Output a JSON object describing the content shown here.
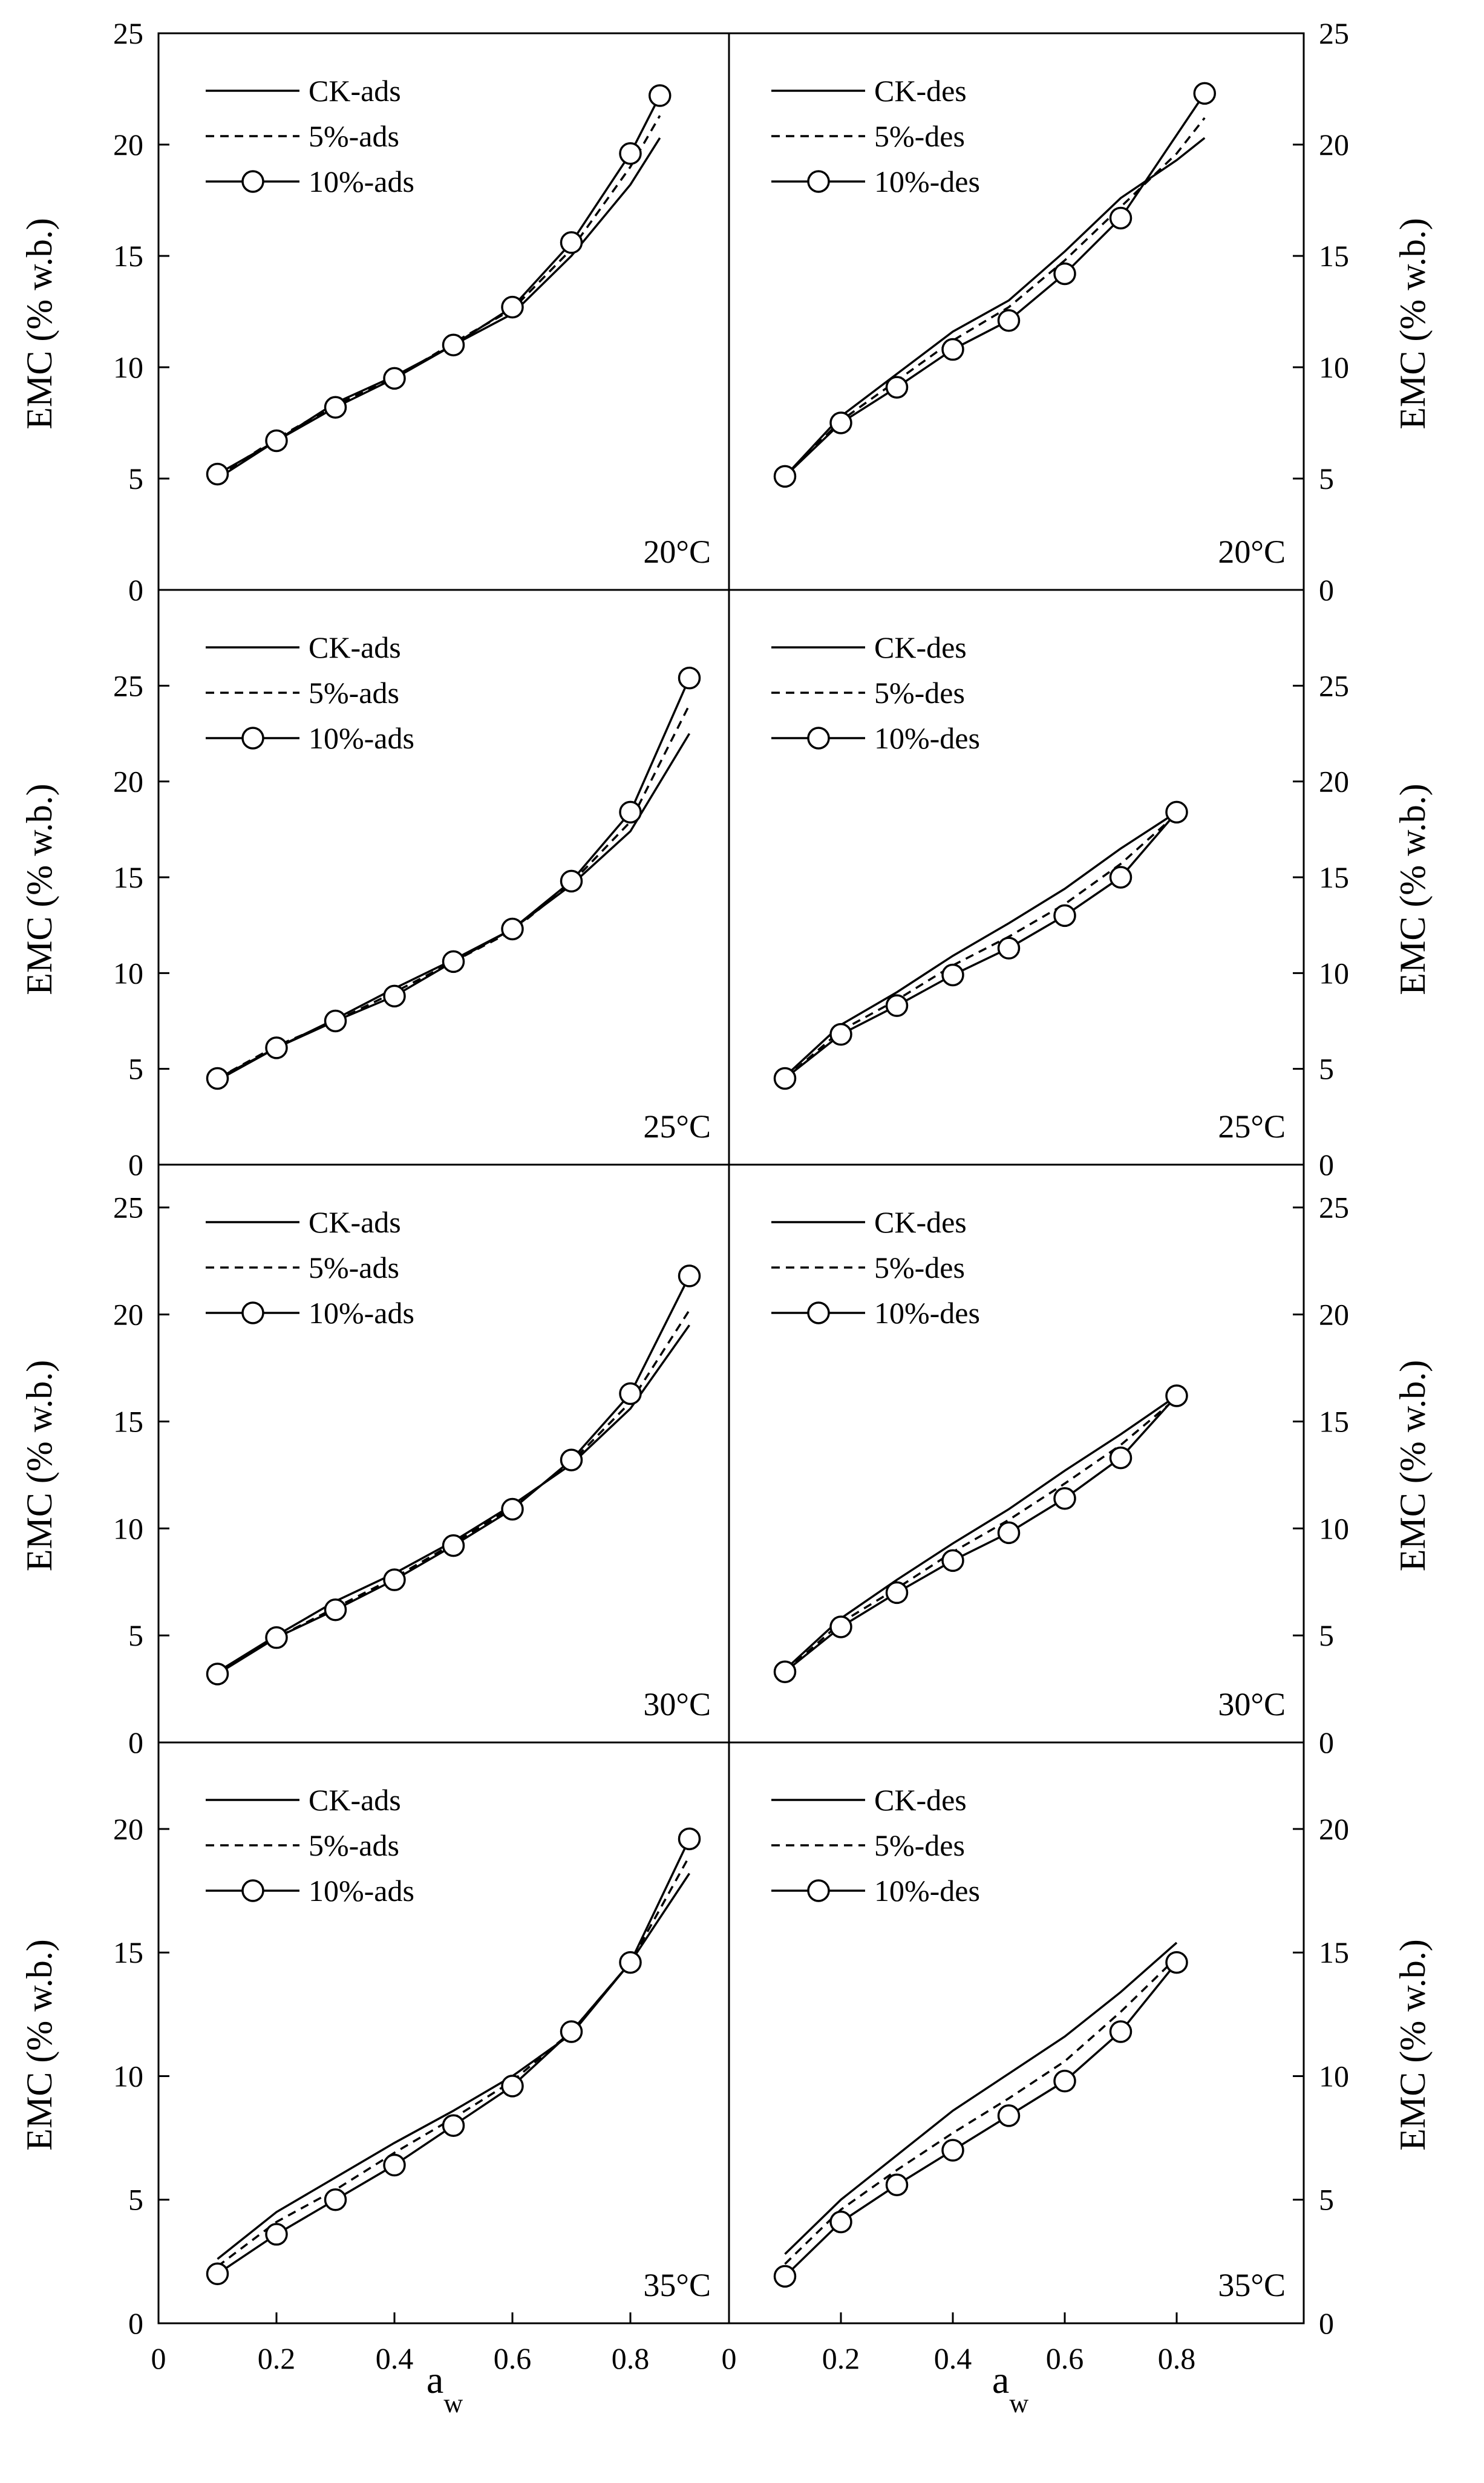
{
  "figure": {
    "x_axis_label_main": "a",
    "x_axis_label_sub": "w"
  },
  "chart_data": [
    {
      "type": "line",
      "column": "left",
      "temperature_label": "20°C",
      "ylabel": "EMC (% w.b.)",
      "ylim": [
        0,
        25
      ],
      "yticks": [
        0,
        5,
        10,
        15,
        20,
        25
      ],
      "xlim": [
        0,
        1
      ],
      "legend": [
        "CK-ads",
        "5%-ads",
        "10%-ads"
      ],
      "series": [
        {
          "name": "CK-ads",
          "style": "solid",
          "x": [
            0.1,
            0.2,
            0.3,
            0.4,
            0.5,
            0.6,
            0.7,
            0.8,
            0.85
          ],
          "values": [
            5.0,
            6.7,
            8.4,
            9.6,
            11.0,
            12.4,
            15.0,
            18.2,
            20.3
          ]
        },
        {
          "name": "5%-ads",
          "style": "dashed",
          "x": [
            0.1,
            0.2,
            0.3,
            0.4,
            0.5,
            0.6,
            0.7,
            0.8,
            0.85
          ],
          "values": [
            5.1,
            6.8,
            8.3,
            9.5,
            11.1,
            12.6,
            15.3,
            19.0,
            21.3
          ]
        },
        {
          "name": "10%-ads",
          "style": "circle",
          "x": [
            0.1,
            0.2,
            0.3,
            0.4,
            0.5,
            0.6,
            0.7,
            0.8,
            0.85
          ],
          "values": [
            5.2,
            6.7,
            8.2,
            9.5,
            11.0,
            12.7,
            15.6,
            19.6,
            22.2
          ]
        }
      ]
    },
    {
      "type": "line",
      "column": "right",
      "temperature_label": "20°C",
      "ylabel": "EMC (% w.b.)",
      "ylim": [
        0,
        25
      ],
      "yticks": [
        0,
        5,
        10,
        15,
        20,
        25
      ],
      "xlim": [
        0,
        1
      ],
      "legend": [
        "CK-des",
        "5%-des",
        "10%-des"
      ],
      "series": [
        {
          "name": "CK-des",
          "style": "solid",
          "x": [
            0.1,
            0.2,
            0.3,
            0.4,
            0.5,
            0.6,
            0.7,
            0.8,
            0.85
          ],
          "values": [
            5.1,
            7.8,
            9.7,
            11.6,
            13.0,
            15.2,
            17.6,
            19.3,
            20.3
          ]
        },
        {
          "name": "5%-des",
          "style": "dashed",
          "x": [
            0.1,
            0.2,
            0.3,
            0.4,
            0.5,
            0.6,
            0.7,
            0.8,
            0.85
          ],
          "values": [
            5.1,
            7.6,
            9.4,
            11.2,
            12.7,
            14.8,
            17.2,
            19.6,
            21.2
          ]
        },
        {
          "name": "10%-des",
          "style": "circle",
          "x": [
            0.1,
            0.2,
            0.3,
            0.4,
            0.5,
            0.6,
            0.7,
            0.85
          ],
          "values": [
            5.1,
            7.5,
            9.1,
            10.8,
            12.1,
            14.2,
            16.7,
            22.3
          ]
        }
      ]
    },
    {
      "type": "line",
      "column": "left",
      "temperature_label": "25°C",
      "ylabel": "EMC (% w.b.)",
      "ylim": [
        0,
        30
      ],
      "yticks": [
        0,
        5,
        10,
        15,
        20,
        25
      ],
      "xlim": [
        0,
        1
      ],
      "legend": [
        "CK-ads",
        "5%-ads",
        "10%-ads"
      ],
      "series": [
        {
          "name": "CK-ads",
          "style": "solid",
          "x": [
            0.1,
            0.2,
            0.3,
            0.4,
            0.5,
            0.6,
            0.7,
            0.8,
            0.9
          ],
          "values": [
            4.4,
            6.1,
            7.6,
            9.2,
            10.7,
            12.3,
            14.6,
            17.4,
            22.5
          ]
        },
        {
          "name": "5%-ads",
          "style": "dashed",
          "x": [
            0.1,
            0.2,
            0.3,
            0.4,
            0.5,
            0.6,
            0.7,
            0.8,
            0.9
          ],
          "values": [
            4.5,
            6.2,
            7.5,
            9.0,
            10.6,
            12.2,
            14.7,
            17.9,
            24.0
          ]
        },
        {
          "name": "10%-ads",
          "style": "circle",
          "x": [
            0.1,
            0.2,
            0.3,
            0.4,
            0.5,
            0.6,
            0.7,
            0.8,
            0.9
          ],
          "values": [
            4.5,
            6.1,
            7.5,
            8.8,
            10.6,
            12.3,
            14.8,
            18.4,
            25.4
          ]
        }
      ]
    },
    {
      "type": "line",
      "column": "right",
      "temperature_label": "25°C",
      "ylabel": "EMC (% w.b.)",
      "ylim": [
        0,
        30
      ],
      "yticks": [
        0,
        5,
        10,
        15,
        20,
        25
      ],
      "xlim": [
        0,
        1
      ],
      "legend": [
        "CK-des",
        "5%-des",
        "10%-des"
      ],
      "series": [
        {
          "name": "CK-des",
          "style": "solid",
          "x": [
            0.1,
            0.2,
            0.3,
            0.4,
            0.5,
            0.6,
            0.7,
            0.8
          ],
          "values": [
            4.6,
            7.3,
            9.0,
            10.9,
            12.6,
            14.4,
            16.5,
            18.4
          ]
        },
        {
          "name": "5%-des",
          "style": "dashed",
          "x": [
            0.1,
            0.2,
            0.3,
            0.4,
            0.5,
            0.6,
            0.7,
            0.8
          ],
          "values": [
            4.5,
            7.0,
            8.6,
            10.4,
            11.9,
            13.6,
            15.7,
            18.3
          ]
        },
        {
          "name": "10%-des",
          "style": "circle",
          "x": [
            0.1,
            0.2,
            0.3,
            0.4,
            0.5,
            0.6,
            0.7,
            0.8
          ],
          "values": [
            4.5,
            6.8,
            8.3,
            9.9,
            11.3,
            13.0,
            15.0,
            18.4
          ]
        }
      ]
    },
    {
      "type": "line",
      "column": "left",
      "temperature_label": "30°C",
      "ylabel": "EMC (% w.b.)",
      "ylim": [
        0,
        27
      ],
      "yticks": [
        0,
        5,
        10,
        15,
        20,
        25
      ],
      "xlim": [
        0,
        1
      ],
      "legend": [
        "CK-ads",
        "5%-ads",
        "10%-ads"
      ],
      "series": [
        {
          "name": "CK-ads",
          "style": "solid",
          "x": [
            0.1,
            0.2,
            0.3,
            0.4,
            0.5,
            0.6,
            0.7,
            0.8,
            0.9
          ],
          "values": [
            3.3,
            5.0,
            6.6,
            7.9,
            9.4,
            11.1,
            13.0,
            15.6,
            19.5
          ]
        },
        {
          "name": "5%-ads",
          "style": "dashed",
          "x": [
            0.1,
            0.2,
            0.3,
            0.4,
            0.5,
            0.6,
            0.7,
            0.8,
            0.9
          ],
          "values": [
            3.3,
            4.9,
            6.3,
            7.7,
            9.3,
            11.0,
            13.1,
            15.9,
            20.2
          ]
        },
        {
          "name": "10%-ads",
          "style": "circle",
          "x": [
            0.1,
            0.2,
            0.3,
            0.4,
            0.5,
            0.6,
            0.7,
            0.8,
            0.9
          ],
          "values": [
            3.2,
            4.9,
            6.2,
            7.6,
            9.2,
            10.9,
            13.2,
            16.3,
            21.8
          ]
        }
      ]
    },
    {
      "type": "line",
      "column": "right",
      "temperature_label": "30°C",
      "ylabel": "EMC (% w.b.)",
      "ylim": [
        0,
        27
      ],
      "yticks": [
        0,
        5,
        10,
        15,
        20,
        25
      ],
      "xlim": [
        0,
        1
      ],
      "legend": [
        "CK-des",
        "5%-des",
        "10%-des"
      ],
      "series": [
        {
          "name": "CK-des",
          "style": "solid",
          "x": [
            0.1,
            0.2,
            0.3,
            0.4,
            0.5,
            0.6,
            0.7,
            0.8
          ],
          "values": [
            3.4,
            5.8,
            7.6,
            9.3,
            10.9,
            12.7,
            14.4,
            16.2
          ]
        },
        {
          "name": "5%-des",
          "style": "dashed",
          "x": [
            0.1,
            0.2,
            0.3,
            0.4,
            0.5,
            0.6,
            0.7,
            0.8
          ],
          "values": [
            3.3,
            5.6,
            7.2,
            8.9,
            10.4,
            12.1,
            13.9,
            16.1
          ]
        },
        {
          "name": "10%-des",
          "style": "circle",
          "x": [
            0.1,
            0.2,
            0.3,
            0.4,
            0.5,
            0.6,
            0.7,
            0.8
          ],
          "values": [
            3.3,
            5.4,
            7.0,
            8.5,
            9.8,
            11.4,
            13.3,
            16.2
          ]
        }
      ]
    },
    {
      "type": "line",
      "column": "left",
      "temperature_label": "35°C",
      "ylabel": "EMC (% w.b.)",
      "ylim": [
        0,
        23.5
      ],
      "yticks": [
        0,
        5,
        10,
        15,
        20
      ],
      "xlim": [
        0,
        1
      ],
      "xticks": [
        0,
        0.2,
        0.4,
        0.6,
        0.8
      ],
      "legend": [
        "CK-ads",
        "5%-ads",
        "10%-ads"
      ],
      "series": [
        {
          "name": "CK-ads",
          "style": "solid",
          "x": [
            0.1,
            0.2,
            0.3,
            0.4,
            0.5,
            0.6,
            0.7,
            0.8,
            0.9
          ],
          "values": [
            2.6,
            4.5,
            5.9,
            7.3,
            8.6,
            10.0,
            11.7,
            14.6,
            18.2
          ]
        },
        {
          "name": "5%-ads",
          "style": "dashed",
          "x": [
            0.1,
            0.2,
            0.3,
            0.4,
            0.5,
            0.6,
            0.7,
            0.8,
            0.9
          ],
          "values": [
            2.3,
            4.1,
            5.4,
            6.9,
            8.3,
            9.8,
            11.8,
            14.6,
            18.9
          ]
        },
        {
          "name": "10%-ads",
          "style": "circle",
          "x": [
            0.1,
            0.2,
            0.3,
            0.4,
            0.5,
            0.6,
            0.7,
            0.8,
            0.9
          ],
          "values": [
            2.0,
            3.6,
            5.0,
            6.4,
            8.0,
            9.6,
            11.8,
            14.6,
            19.6
          ]
        }
      ]
    },
    {
      "type": "line",
      "column": "right",
      "temperature_label": "35°C",
      "ylabel": "EMC (% w.b.)",
      "ylim": [
        0,
        23.5
      ],
      "yticks": [
        0,
        5,
        10,
        15,
        20
      ],
      "xlim": [
        0,
        1
      ],
      "xticks": [
        0,
        0.2,
        0.4,
        0.6,
        0.8
      ],
      "legend": [
        "CK-des",
        "5%-des",
        "10%-des"
      ],
      "series": [
        {
          "name": "CK-des",
          "style": "solid",
          "x": [
            0.1,
            0.2,
            0.3,
            0.4,
            0.5,
            0.6,
            0.7,
            0.8
          ],
          "values": [
            2.8,
            5.0,
            6.8,
            8.6,
            10.1,
            11.6,
            13.4,
            15.4
          ]
        },
        {
          "name": "5%-des",
          "style": "dashed",
          "x": [
            0.1,
            0.2,
            0.3,
            0.4,
            0.5,
            0.6,
            0.7,
            0.8
          ],
          "values": [
            2.4,
            4.6,
            6.2,
            7.7,
            9.1,
            10.6,
            12.6,
            14.8
          ]
        },
        {
          "name": "10%-des",
          "style": "circle",
          "x": [
            0.1,
            0.2,
            0.3,
            0.4,
            0.5,
            0.6,
            0.7,
            0.8
          ],
          "values": [
            1.9,
            4.1,
            5.6,
            7.0,
            8.4,
            9.8,
            11.8,
            14.6
          ]
        }
      ]
    }
  ]
}
